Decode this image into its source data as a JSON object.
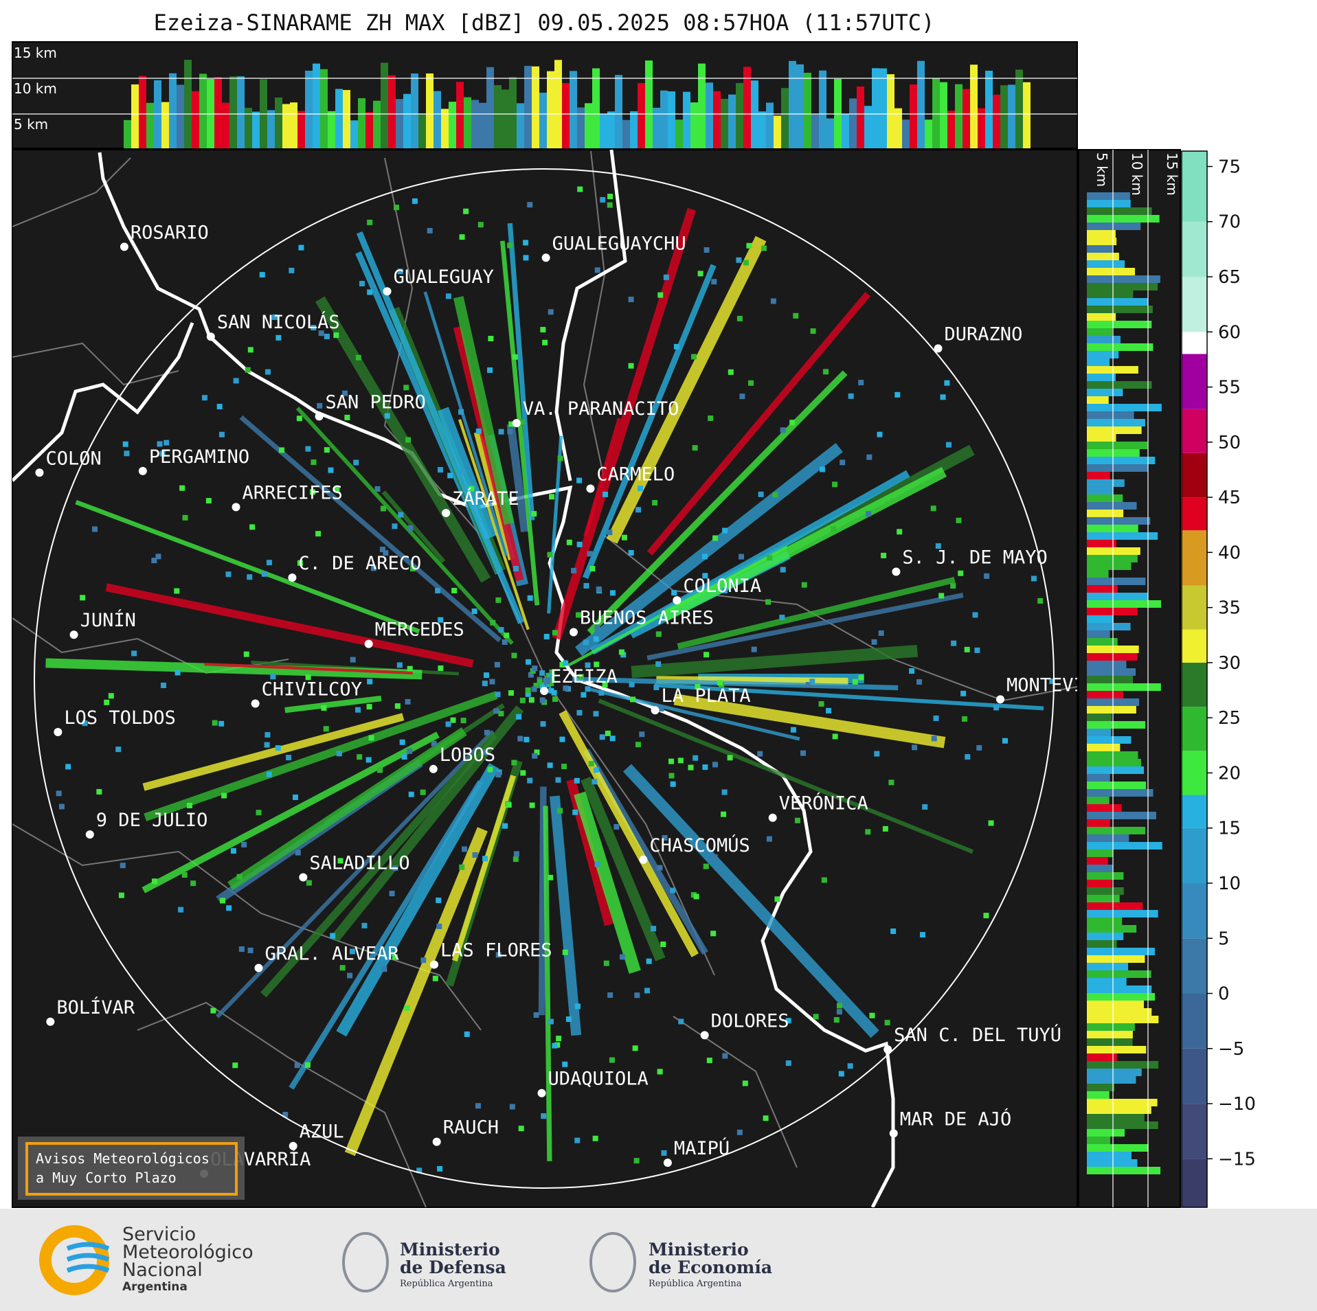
{
  "title": "Ezeiza-SINARAME ZH MAX [dBZ] 09.05.2025 08:57HOA (11:57UTC)",
  "cross_section_top": {
    "height_labels": [
      "15 km",
      "10 km",
      "5 km"
    ]
  },
  "cross_section_right": {
    "height_labels": [
      "5 km",
      "10 km",
      "15 km"
    ]
  },
  "cities": [
    {
      "label": "ROSARIO"
    },
    {
      "label": "GUALEGUAYCHU"
    },
    {
      "label": "GUALEGUAY"
    },
    {
      "label": "SAN NICOLÁS"
    },
    {
      "label": "DURAZNO"
    },
    {
      "label": "SAN PEDRO"
    },
    {
      "label": "VA. PARANACITO"
    },
    {
      "label": "COLON"
    },
    {
      "label": "PERGAMINO"
    },
    {
      "label": "CARMELO"
    },
    {
      "label": "ARRECIFES"
    },
    {
      "label": "ZÁRATE"
    },
    {
      "label": "S. J. DE MAYO"
    },
    {
      "label": "C. DE ARECO"
    },
    {
      "label": "COLONIA"
    },
    {
      "label": "BUENOS AIRES"
    },
    {
      "label": "JUNÍN"
    },
    {
      "label": "MERCEDES"
    },
    {
      "label": "EZEIZA"
    },
    {
      "label": "CHIVILCOY"
    },
    {
      "label": "MONTEVIDEO"
    },
    {
      "label": "LA PLATA"
    },
    {
      "label": "LOS TOLDOS"
    },
    {
      "label": "LOBOS"
    },
    {
      "label": "VERÓNICA"
    },
    {
      "label": "9 DE JULIO"
    },
    {
      "label": "CHASCOMÚS"
    },
    {
      "label": "SALADILLO"
    },
    {
      "label": "GRAL. ALVEAR"
    },
    {
      "label": "LAS FLORES"
    },
    {
      "label": "BOLÍVAR"
    },
    {
      "label": "DOLORES"
    },
    {
      "label": "SAN C. DEL TUYÚ"
    },
    {
      "label": "UDAQUIOLA"
    },
    {
      "label": "MAR DE AJÓ"
    },
    {
      "label": "AZUL"
    },
    {
      "label": "RAUCH"
    },
    {
      "label": "MAIPÚ"
    },
    {
      "label": "OLAVARRÍA"
    }
  ],
  "colorbar": {
    "lim": [
      -19.4,
      76.4
    ],
    "ticks": [
      {
        "value": -15,
        "label": "−15"
      },
      {
        "value": -10,
        "label": "−10"
      },
      {
        "value": -5,
        "label": "−5"
      },
      0,
      5,
      10,
      15,
      20,
      25,
      30,
      35,
      40,
      45,
      50,
      55,
      60,
      65,
      70,
      75
    ],
    "bands": [
      {
        "from": -19.4,
        "to": -15,
        "color": "#3a3d68"
      },
      {
        "from": -15,
        "to": -10,
        "color": "#414a78"
      },
      {
        "from": -10,
        "to": -5,
        "color": "#3d5888"
      },
      {
        "from": -5,
        "to": 0,
        "color": "#3b6898"
      },
      {
        "from": 0,
        "to": 5,
        "color": "#3c78a8"
      },
      {
        "from": 5,
        "to": 10,
        "color": "#378abd"
      },
      {
        "from": 10,
        "to": 15,
        "color": "#2e9dce"
      },
      {
        "from": 15,
        "to": 18,
        "color": "#27b0e0"
      },
      {
        "from": 18,
        "to": 22,
        "color": "#3ee83e"
      },
      {
        "from": 22,
        "to": 26,
        "color": "#30b830"
      },
      {
        "from": 26,
        "to": 30,
        "color": "#2a7a2a"
      },
      {
        "from": 30,
        "to": 33,
        "color": "#f0f030"
      },
      {
        "from": 33,
        "to": 37,
        "color": "#c8c830"
      },
      {
        "from": 37,
        "to": 42,
        "color": "#d89a20"
      },
      {
        "from": 42,
        "to": 45,
        "color": "#e00020"
      },
      {
        "from": 45,
        "to": 49,
        "color": "#a00010"
      },
      {
        "from": 49,
        "to": 53,
        "color": "#d00060"
      },
      {
        "from": 53,
        "to": 58,
        "color": "#a000a0"
      },
      {
        "from": 58,
        "to": 60,
        "color": "#ffffff"
      },
      {
        "from": 60,
        "to": 65,
        "color": "#c0f0e0"
      },
      {
        "from": 65,
        "to": 70,
        "color": "#a0e8d0"
      },
      {
        "from": 70,
        "to": 76.4,
        "color": "#80e0c0"
      }
    ]
  },
  "notice": {
    "lines": [
      "Avisos Meteorológicos",
      "a Muy Corto Plazo"
    ]
  },
  "logos": {
    "smn": [
      "Servicio",
      "Meteorológico",
      "Nacional",
      "Argentina"
    ],
    "defensa": [
      "Ministerio",
      "de Defensa",
      "República Argentina"
    ],
    "economia": [
      "Ministerio",
      "de Economía",
      "República Argentina"
    ]
  }
}
